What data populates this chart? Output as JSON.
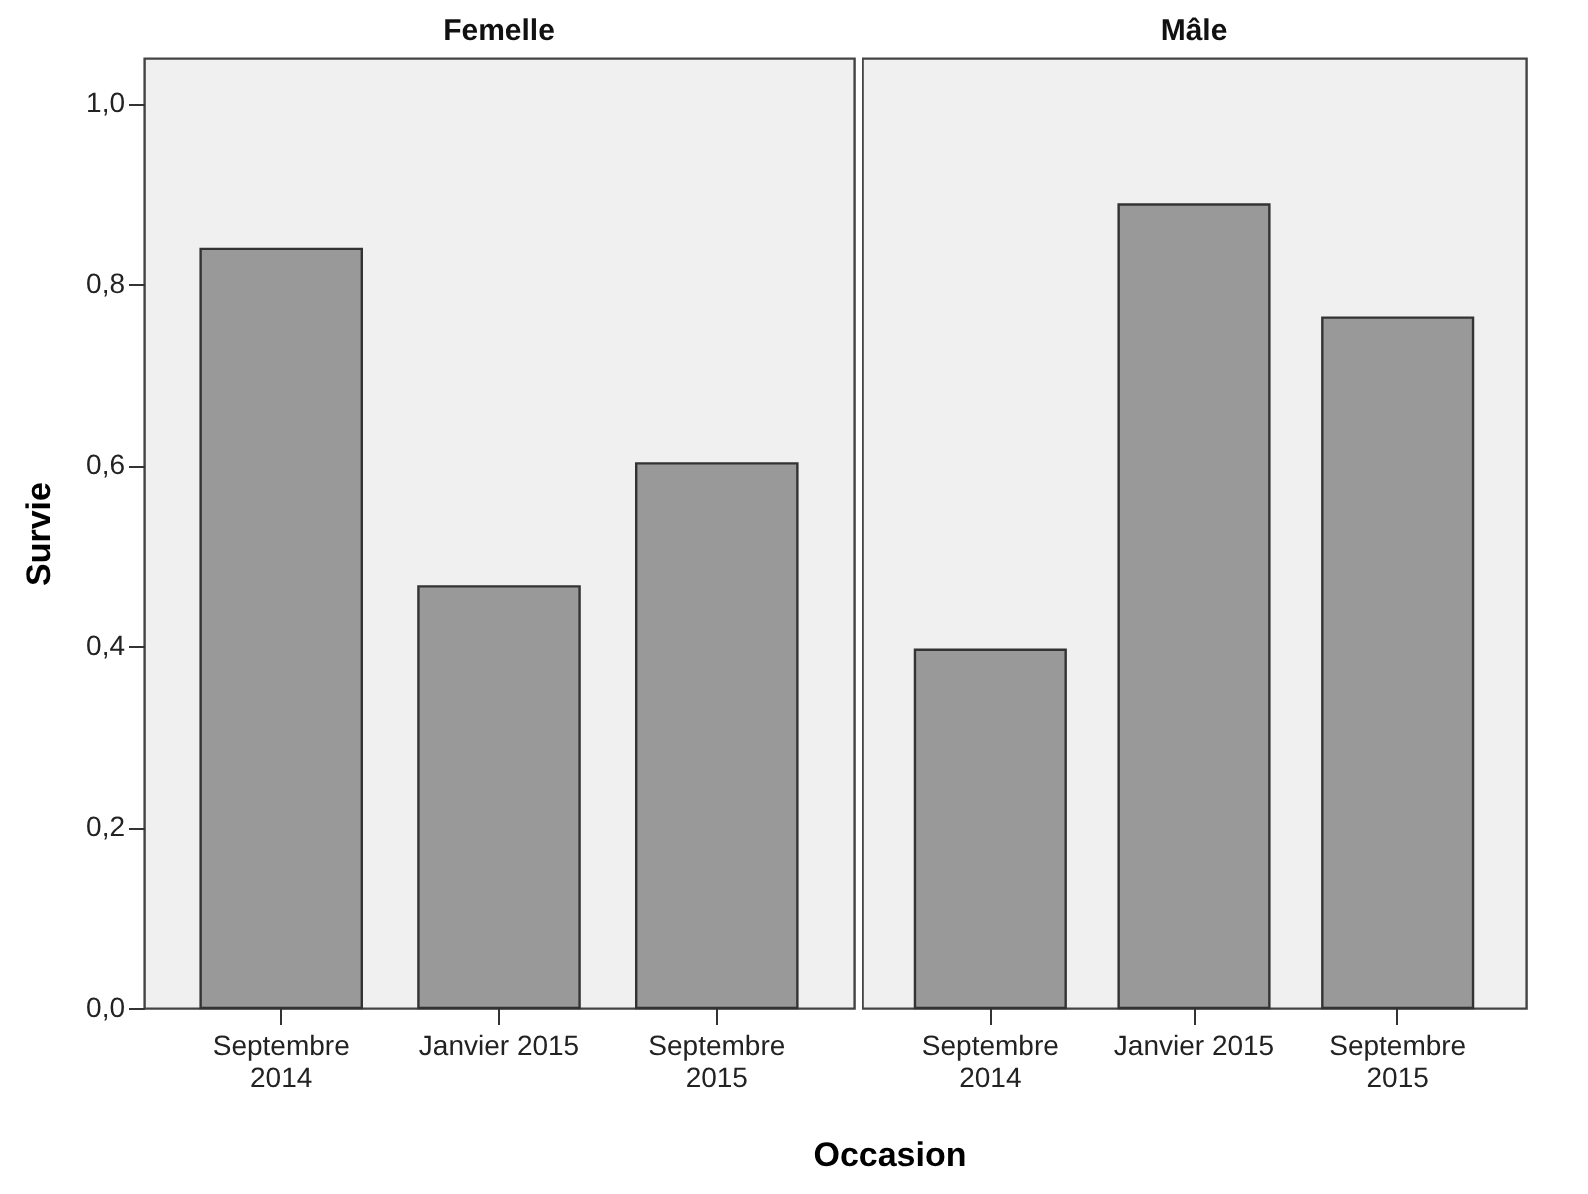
{
  "chart_data": [
    {
      "type": "bar",
      "title": "Femelle",
      "xlabel": "Occasion",
      "ylabel": "Survie",
      "categories": [
        "Septembre 2014",
        "Janvier 2015",
        "Septembre 2015"
      ],
      "values": [
        0.839,
        0.466,
        0.602
      ],
      "color": "#999999",
      "ylim": [
        0,
        1.05
      ],
      "yticks": [
        {
          "value": 0,
          "label": "0,0"
        },
        {
          "value": 0.2,
          "label": "0,2"
        },
        {
          "value": 0.4,
          "label": "0,4"
        },
        {
          "value": 0.6,
          "label": "0,6"
        },
        {
          "value": 0.8,
          "label": "0,8"
        },
        {
          "value": 1,
          "label": "1,0"
        }
      ]
    },
    {
      "type": "bar",
      "title": "Mâle",
      "categories": [
        "Septembre 2014",
        "Janvier 2015",
        "Septembre 2015"
      ],
      "values": [
        0.396,
        0.888,
        0.763
      ],
      "color": "#999999",
      "ylim": [
        0,
        1.05
      ],
      "tick_labels": "x"
    }
  ]
}
